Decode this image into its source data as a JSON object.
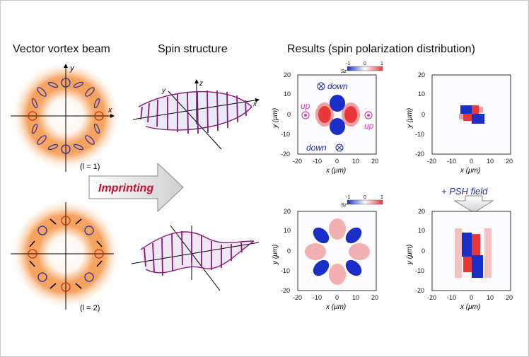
{
  "headings": {
    "beam": "Vector vortex  beam",
    "spin": "Spin structure",
    "results": "Results (spin polarization distribution)"
  },
  "beam_panels": [
    {
      "label": "(l = 1)"
    },
    {
      "label": "(l = 2)"
    }
  ],
  "axes": {
    "x": "x",
    "y": "y",
    "z": "z"
  },
  "arrow_label": "Imprinting",
  "psh_label": "+ PSH field",
  "plot_axes": {
    "xlabel": "x (μm)",
    "ylabel": "y (μm)",
    "ticks": [
      "-20",
      "-10",
      "0",
      "10",
      "20"
    ]
  },
  "colorbar": {
    "title": "Sz",
    "ticks": [
      "-1",
      "0",
      "1"
    ]
  },
  "annotations": {
    "down": "down",
    "up": "up"
  },
  "colors": {
    "orange": "#f08a3a",
    "red_circle": "#c8321e",
    "blue_circle": "#2430a8",
    "spin_purple": "#8a1a7a",
    "arrow_text": "#c8102e",
    "psh_text": "#1a2fa0",
    "map_red": "#e8383a",
    "map_blue": "#1a2fc8",
    "magenta": "#d040c0"
  }
}
